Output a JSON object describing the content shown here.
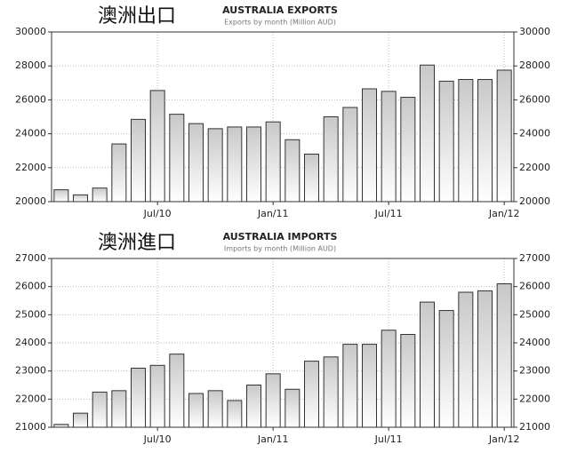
{
  "chart_data": [
    {
      "type": "bar",
      "title": "AUSTRALIA EXPORTS",
      "subtitle": "Exports by month (Million AUD)",
      "annotation": "澳洲出口",
      "categories": [
        null,
        null,
        null,
        null,
        null,
        "Jul/10",
        null,
        null,
        null,
        null,
        null,
        "Jan/11",
        null,
        null,
        null,
        null,
        null,
        "Jul/11",
        null,
        null,
        null,
        null,
        null,
        "Jan/12"
      ],
      "values": [
        20700,
        20400,
        20800,
        23400,
        24850,
        26550,
        25150,
        24600,
        24300,
        24400,
        24400,
        24700,
        23650,
        22800,
        25000,
        25550,
        26650,
        26500,
        26150,
        28050,
        27100,
        27200,
        27200,
        27750
      ],
      "color": "#c8c8c8",
      "ylim": [
        20000,
        30000
      ],
      "yticks": [
        20000,
        22000,
        24000,
        26000,
        28000,
        30000
      ],
      "grid": true
    },
    {
      "type": "bar",
      "title": "AUSTRALIA IMPORTS",
      "subtitle": "Imports by month (Million AUD)",
      "annotation": "澳洲進口",
      "categories": [
        null,
        null,
        null,
        null,
        null,
        "Jul/10",
        null,
        null,
        null,
        null,
        null,
        "Jan/11",
        null,
        null,
        null,
        null,
        null,
        "Jul/11",
        null,
        null,
        null,
        null,
        null,
        "Jan/12"
      ],
      "values": [
        21100,
        21500,
        22250,
        22300,
        23100,
        23200,
        23600,
        22200,
        22300,
        21950,
        22500,
        22900,
        22350,
        23350,
        23500,
        23950,
        23950,
        24450,
        24300,
        25450,
        25150,
        25800,
        25850,
        26100
      ],
      "color": "#c8c8c8",
      "ylim": [
        21000,
        27000
      ],
      "yticks": [
        21000,
        22000,
        23000,
        24000,
        25000,
        26000,
        27000
      ],
      "grid": true
    }
  ]
}
